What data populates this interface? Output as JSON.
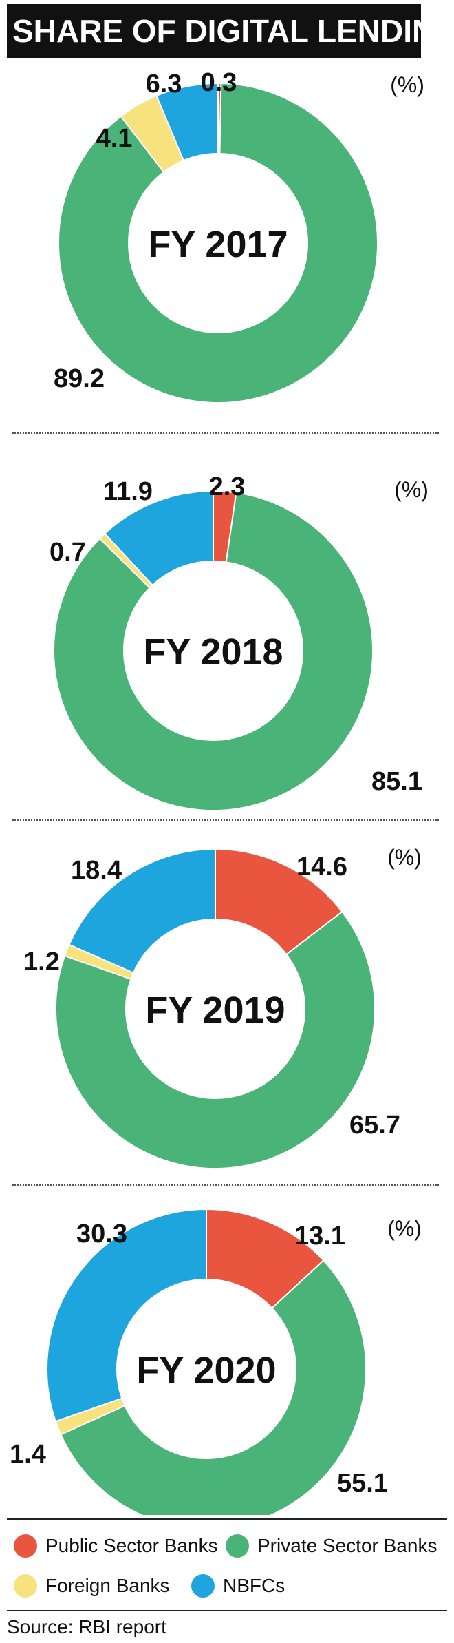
{
  "title": "SHARE OF DIGITAL LENDING",
  "unit": "(%)",
  "colors": {
    "public": "#e9553f",
    "private": "#49b378",
    "foreign": "#f7e27e",
    "nbfc": "#1ea5de"
  },
  "chart_data": [
    {
      "type": "pie",
      "center_label": "FY 2017",
      "slices": [
        {
          "key": "public",
          "value": 0.3
        },
        {
          "key": "private",
          "value": 89.2
        },
        {
          "key": "foreign",
          "value": 4.1
        },
        {
          "key": "nbfc",
          "value": 6.3
        }
      ]
    },
    {
      "type": "pie",
      "center_label": "FY 2018",
      "slices": [
        {
          "key": "public",
          "value": 2.3
        },
        {
          "key": "private",
          "value": 85.1
        },
        {
          "key": "foreign",
          "value": 0.7
        },
        {
          "key": "nbfc",
          "value": 11.9
        }
      ]
    },
    {
      "type": "pie",
      "center_label": "FY 2019",
      "slices": [
        {
          "key": "public",
          "value": 14.6
        },
        {
          "key": "private",
          "value": 65.7
        },
        {
          "key": "foreign",
          "value": 1.2
        },
        {
          "key": "nbfc",
          "value": 18.4
        }
      ]
    },
    {
      "type": "pie",
      "center_label": "FY 2020",
      "slices": [
        {
          "key": "public",
          "value": 13.1
        },
        {
          "key": "private",
          "value": 55.1
        },
        {
          "key": "foreign",
          "value": 1.4
        },
        {
          "key": "nbfc",
          "value": 30.3
        }
      ]
    }
  ],
  "legend": [
    {
      "key": "public",
      "label": "Public Sector Banks"
    },
    {
      "key": "private",
      "label": "Private Sector Banks"
    },
    {
      "key": "foreign",
      "label": "Foreign Banks"
    },
    {
      "key": "nbfc",
      "label": "NBFCs"
    }
  ],
  "source": "Source: RBI report"
}
